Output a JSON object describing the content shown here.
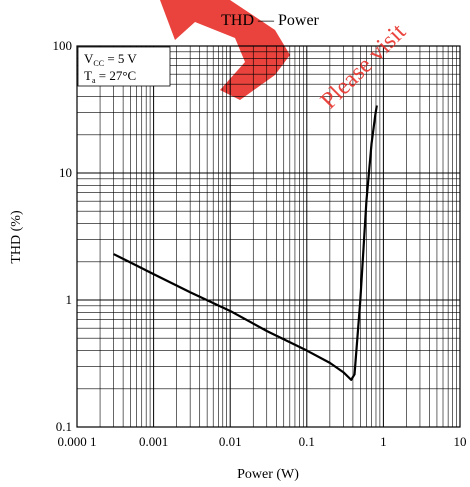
{
  "chart_data": {
    "type": "line",
    "title": "THD — Power",
    "xlabel": "Power  (W)",
    "ylabel": "THD  (%)",
    "x_scale": "log",
    "y_scale": "log",
    "xlim": [
      0.0001,
      10
    ],
    "ylim": [
      0.1,
      100
    ],
    "grid": true,
    "x_ticks": [
      {
        "value": 0.0001,
        "label": "0.000 1"
      },
      {
        "value": 0.001,
        "label": "0.001"
      },
      {
        "value": 0.01,
        "label": "0.01"
      },
      {
        "value": 0.1,
        "label": "0.1"
      },
      {
        "value": 1,
        "label": "1"
      },
      {
        "value": 10,
        "label": "10"
      }
    ],
    "y_ticks": [
      {
        "value": 0.1,
        "label": "0.1"
      },
      {
        "value": 1,
        "label": "1"
      },
      {
        "value": 10,
        "label": "10"
      },
      {
        "value": 100,
        "label": "100"
      }
    ],
    "conditions": {
      "vcc": {
        "main": "V",
        "sub": "CC",
        "rest": " = 5 V"
      },
      "ta": {
        "main": "T",
        "sub": "a",
        "rest": " = 27°C"
      }
    },
    "series": [
      {
        "x": [
          0.0003,
          0.001,
          0.003,
          0.01,
          0.03,
          0.1,
          0.2,
          0.3,
          0.38,
          0.42,
          0.5,
          0.6,
          0.7,
          0.78,
          0.82
        ],
        "y": [
          2.3,
          1.6,
          1.15,
          0.82,
          0.57,
          0.4,
          0.32,
          0.27,
          0.235,
          0.26,
          1.0,
          6.0,
          17.0,
          28.0,
          34.0
        ]
      }
    ]
  },
  "watermark": {
    "text": "Please visit",
    "color": "#e8322b"
  }
}
